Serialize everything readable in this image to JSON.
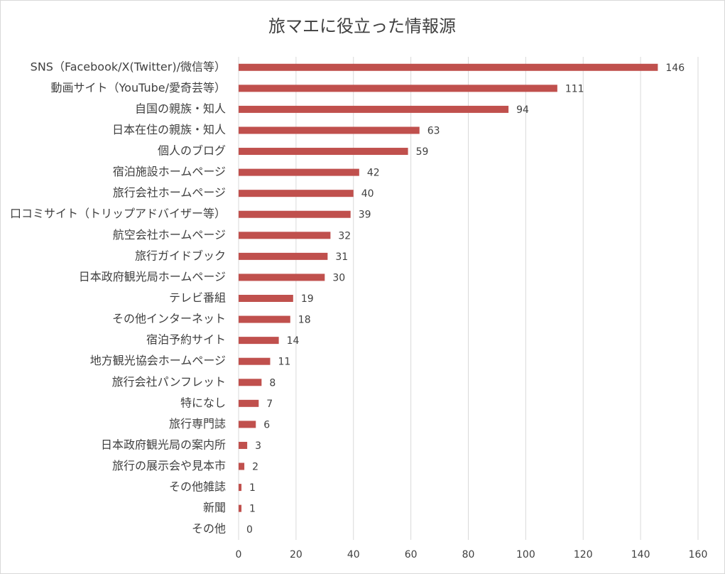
{
  "chart_data": {
    "type": "bar",
    "orientation": "horizontal",
    "title": "旅マエに役立った情報源",
    "categories": [
      "SNS（Facebook/X(Twitter)/微信等）",
      "動画サイト（YouTube/愛奇芸等）",
      "自国の親族・知人",
      "日本在住の親族・知人",
      "個人のブログ",
      "宿泊施設ホームページ",
      "旅行会社ホームページ",
      "口コミサイト（トリップアドバイザー等）",
      "航空会社ホームページ",
      "旅行ガイドブック",
      "日本政府観光局ホームページ",
      "テレビ番組",
      "その他インターネット",
      "宿泊予約サイト",
      "地方観光協会ホームページ",
      "旅行会社パンフレット",
      "特になし",
      "旅行専門誌",
      "日本政府観光局の案内所",
      "旅行の展示会や見本市",
      "その他雑誌",
      "新聞",
      "その他"
    ],
    "values": [
      146,
      111,
      94,
      63,
      59,
      42,
      40,
      39,
      32,
      31,
      30,
      19,
      18,
      14,
      11,
      8,
      7,
      6,
      3,
      2,
      1,
      1,
      0
    ],
    "color": "#c0504d",
    "xlim": [
      0,
      160
    ],
    "xticks": [
      0,
      20,
      40,
      60,
      80,
      100,
      120,
      140,
      160
    ],
    "grid": true
  }
}
